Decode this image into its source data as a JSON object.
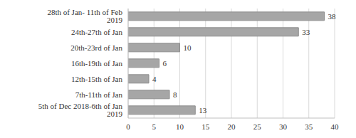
{
  "chart_data": {
    "type": "bar",
    "orientation": "horizontal",
    "categories": [
      "28th of Jan- 11th of Feb 2019",
      "24th-27th of Jan",
      "20th-23rd of Jan",
      "16th-19th of Jan",
      "12th-15th of Jan",
      "7th-11th of Jan",
      "5th of Dec 2018-6th of Jan 2019"
    ],
    "values": [
      38,
      33,
      10,
      6,
      4,
      8,
      13
    ],
    "color": "#a6a6a6",
    "xlim": [
      0,
      40
    ],
    "xticks": [
      0,
      5,
      10,
      15,
      20,
      25,
      30,
      35,
      40
    ],
    "grid": true,
    "data_labels": true
  }
}
